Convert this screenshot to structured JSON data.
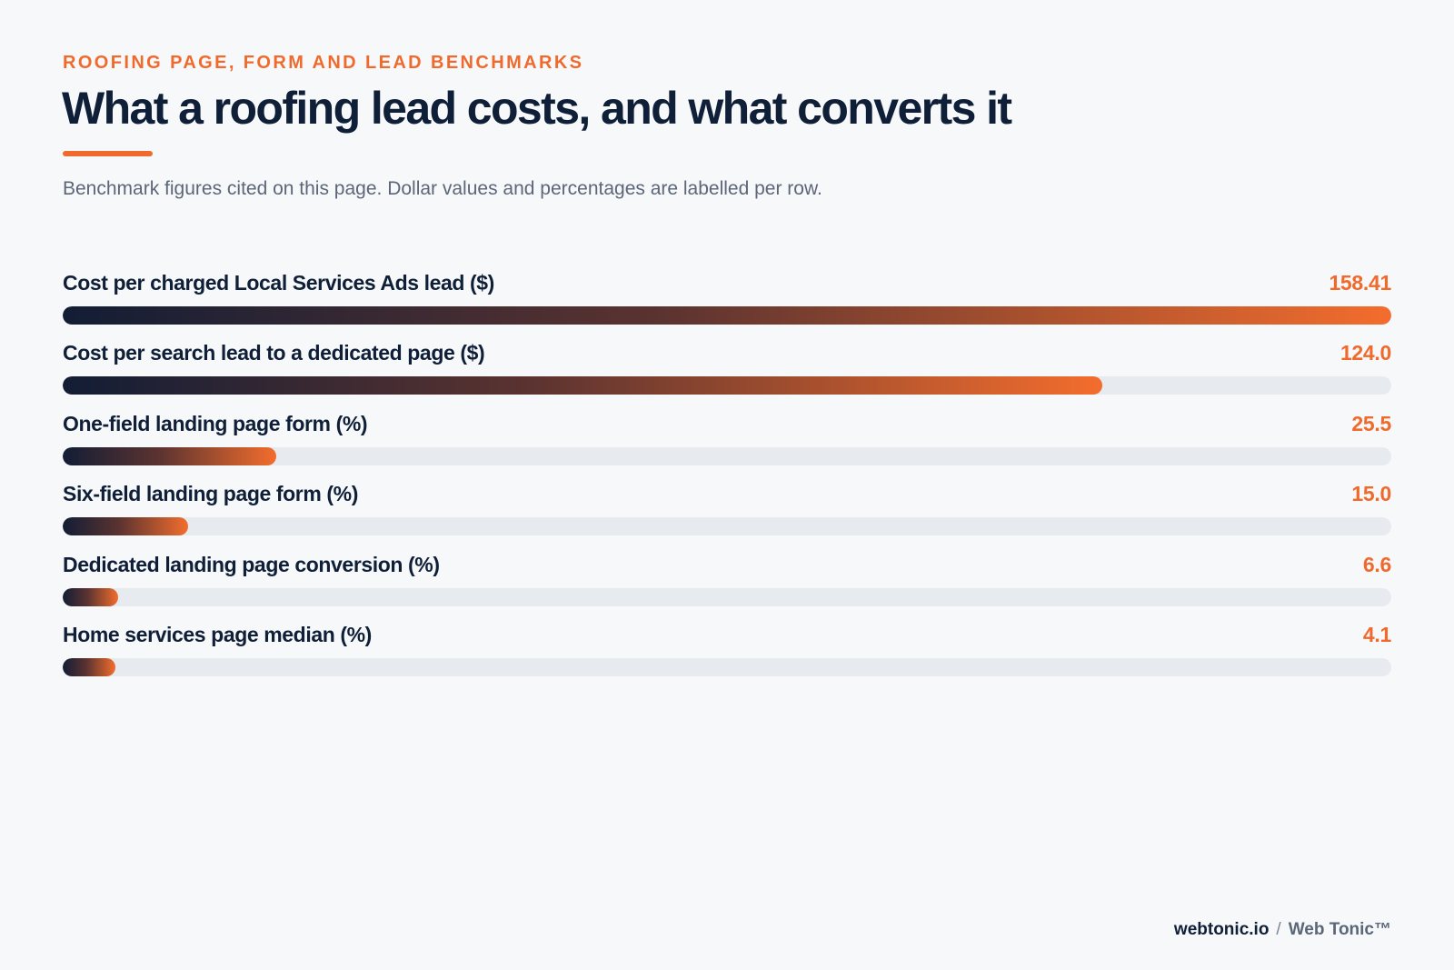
{
  "header": {
    "kicker": "ROOFING PAGE, FORM AND LEAD BENCHMARKS",
    "title": "What a roofing lead costs, and what converts it",
    "subtitle": "Benchmark figures cited on this page. Dollar values and percentages are labelled per row."
  },
  "colors": {
    "accent": "#ef6a2c",
    "ink": "#0f1f38",
    "track": "#e7eaef",
    "gradient_start": "#121d35",
    "gradient_end": "#f36d2d"
  },
  "chart_data": {
    "type": "bar",
    "orientation": "horizontal",
    "categories": [
      "Cost per charged Local Services Ads lead ($)",
      "Cost per search lead to a dedicated page ($)",
      "One-field landing page form (%)",
      "Six-field landing page form (%)",
      "Dedicated landing page conversion (%)",
      "Home services page median (%)"
    ],
    "values": [
      158.41,
      124.0,
      25.5,
      15.0,
      6.6,
      4.1
    ],
    "value_labels": [
      "158.41",
      "124.0",
      "25.5",
      "15.0",
      "6.6",
      "4.1"
    ],
    "xlim": [
      0,
      158.41
    ],
    "min_visible_value": 6.3,
    "grid": false,
    "legend": "none"
  },
  "footer": {
    "domain": "webtonic.io",
    "separator": "/",
    "brand": "Web Tonic™"
  }
}
